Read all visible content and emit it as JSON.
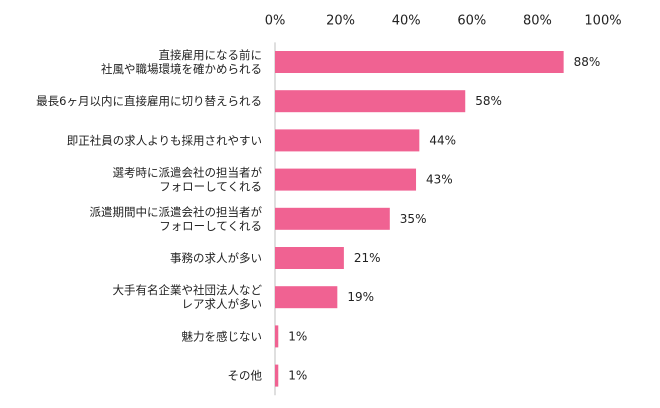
{
  "chart_data": {
    "type": "bar",
    "orientation": "horizontal",
    "title": "",
    "xlabel": "",
    "ylabel": "",
    "xlim": [
      0,
      100
    ],
    "ticks": [
      "0%",
      "20%",
      "40%",
      "60%",
      "80%",
      "100%"
    ],
    "tick_values": [
      0,
      20,
      40,
      60,
      80,
      100
    ],
    "axis_position": "top",
    "grid": false,
    "bar_color": "#f06292",
    "categories": [
      [
        "直接雇用になる前に",
        "社風や職場環境を確かめられる"
      ],
      [
        "最長6ヶ月以内に直接雇用に切り替えられる"
      ],
      [
        "即正社員の求人よりも採用されやすい"
      ],
      [
        "選考時に派遣会社の担当者が",
        "フォローしてくれる"
      ],
      [
        "派遣期間中に派遣会社の担当者が",
        "フォローしてくれる"
      ],
      [
        "事務の求人が多い"
      ],
      [
        "大手有名企業や社団法人など",
        "レア求人が多い"
      ],
      [
        "魅力を感じない"
      ],
      [
        "その他"
      ]
    ],
    "values": [
      88,
      58,
      44,
      43,
      35,
      21,
      19,
      1,
      1
    ],
    "value_labels": [
      "88%",
      "58%",
      "44%",
      "43%",
      "35%",
      "21%",
      "19%",
      "1%",
      "1%"
    ]
  }
}
